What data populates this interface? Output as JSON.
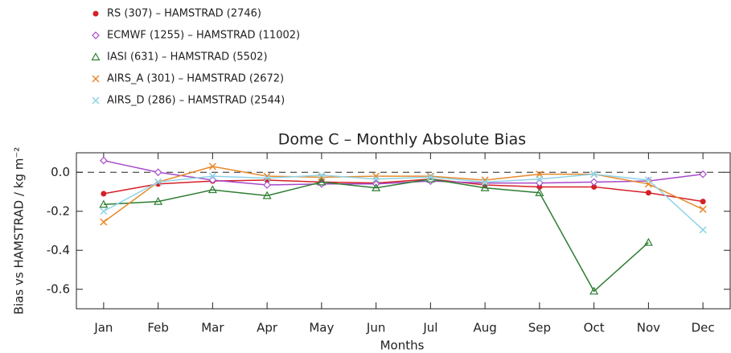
{
  "chart_data": {
    "type": "line",
    "title": "Dome C – Monthly Absolute Bias",
    "x_label": "Months",
    "y_label": "Bias vs HAMSTRAD / kg m⁻²",
    "categories": [
      "Jan",
      "Feb",
      "Mar",
      "Apr",
      "May",
      "Jun",
      "Jul",
      "Aug",
      "Sep",
      "Oct",
      "Nov",
      "Dec"
    ],
    "ylim": [
      -0.7,
      0.1
    ],
    "yticks": [
      {
        "value": 0,
        "label": "0.0"
      },
      -0.2,
      -0.4,
      -0.6
    ],
    "series": [
      {
        "name": "RS (307) – HAMSTRAD (2746)",
        "color": "#d42027",
        "marker": "circle",
        "values": [
          -0.11,
          -0.06,
          -0.045,
          -0.04,
          -0.05,
          -0.055,
          -0.035,
          -0.065,
          -0.075,
          -0.075,
          -0.105,
          -0.15
        ]
      },
      {
        "name": "ECMWF (1255) – HAMSTRAD (11002)",
        "color": "#a64ac9",
        "marker": "diamond",
        "values": [
          0.06,
          0.0,
          -0.04,
          -0.065,
          -0.06,
          -0.06,
          -0.045,
          -0.055,
          -0.055,
          -0.05,
          -0.045,
          -0.01
        ]
      },
      {
        "name": "IASI (631) – HAMSTRAD (5502)",
        "color": "#2e7d32",
        "marker": "triangle",
        "values": [
          -0.165,
          -0.15,
          -0.09,
          -0.12,
          -0.05,
          -0.08,
          -0.035,
          -0.08,
          -0.105,
          -0.61,
          -0.36,
          null
        ]
      },
      {
        "name": "AIRS_A (301) – HAMSTRAD (2672)",
        "color": "#e8892a",
        "marker": "x",
        "values": [
          -0.255,
          -0.05,
          0.03,
          -0.02,
          -0.025,
          -0.02,
          -0.02,
          -0.04,
          -0.01,
          -0.01,
          -0.06,
          -0.19
        ]
      },
      {
        "name": "AIRS_D (286) – HAMSTRAD (2544)",
        "color": "#8fd3e8",
        "marker": "x",
        "values": [
          -0.2,
          -0.05,
          -0.02,
          -0.03,
          -0.015,
          -0.035,
          -0.025,
          -0.05,
          -0.035,
          -0.01,
          -0.04,
          -0.295
        ]
      }
    ]
  }
}
